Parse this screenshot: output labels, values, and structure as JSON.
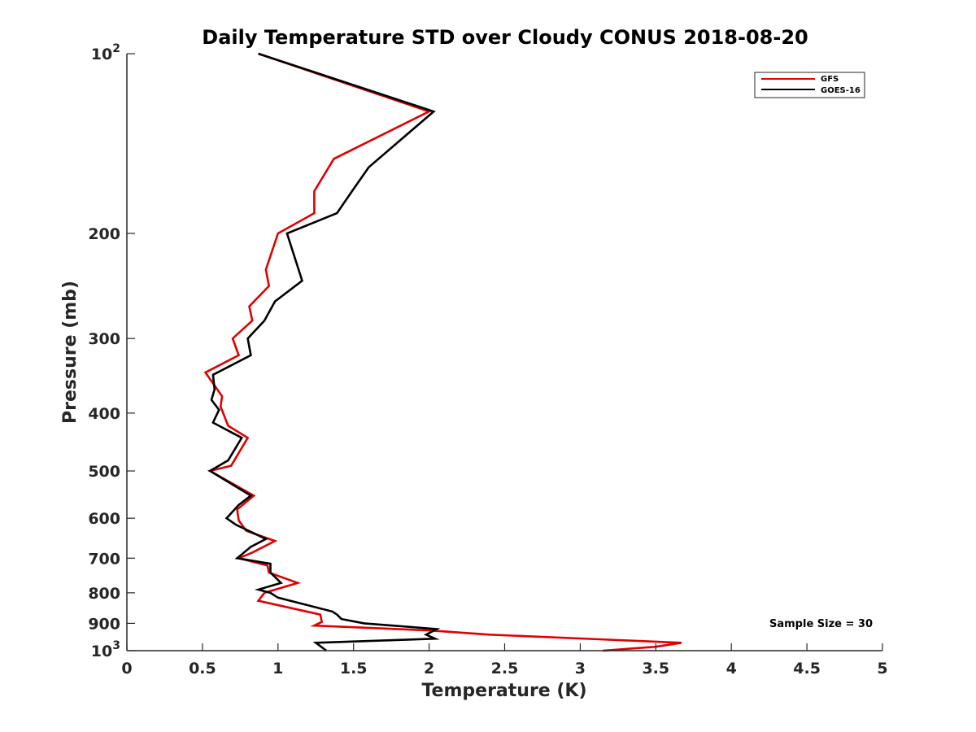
{
  "chart_data": {
    "type": "line",
    "title": "Daily Temperature STD over Cloudy CONUS 2018-08-20",
    "xlabel": "Temperature (K)",
    "ylabel": "Pressure (mb)",
    "xlim": [
      0,
      5
    ],
    "ylim": [
      100,
      1000
    ],
    "y_scale": "log",
    "y_reversed": true,
    "grid": false,
    "legend_position": "top-right",
    "x_ticks": [
      {
        "value": 0,
        "label": "0"
      },
      {
        "value": 0.5,
        "label": "0.5"
      },
      {
        "value": 1,
        "label": "1"
      },
      {
        "value": 1.5,
        "label": "1.5"
      },
      {
        "value": 2,
        "label": "2"
      },
      {
        "value": 2.5,
        "label": "2.5"
      },
      {
        "value": 3,
        "label": "3"
      },
      {
        "value": 3.5,
        "label": "3.5"
      },
      {
        "value": 4,
        "label": "4"
      },
      {
        "value": 4.5,
        "label": "4.5"
      },
      {
        "value": 5,
        "label": "5"
      }
    ],
    "y_ticks": [
      {
        "value": 100,
        "base": "10",
        "exp": "2"
      },
      {
        "value": 200,
        "label": "200"
      },
      {
        "value": 300,
        "label": "300"
      },
      {
        "value": 400,
        "label": "400"
      },
      {
        "value": 500,
        "label": "500"
      },
      {
        "value": 600,
        "label": "600"
      },
      {
        "value": 700,
        "label": "700"
      },
      {
        "value": 800,
        "label": "800"
      },
      {
        "value": 900,
        "label": "900"
      },
      {
        "value": 1000,
        "base": "10",
        "exp": "3"
      }
    ],
    "series": [
      {
        "name": "GFS",
        "color": "#e00000",
        "points": [
          [
            0.87,
            100
          ],
          [
            2.0,
            125
          ],
          [
            1.37,
            150
          ],
          [
            1.24,
            170
          ],
          [
            1.24,
            185
          ],
          [
            1.0,
            200
          ],
          [
            0.92,
            230
          ],
          [
            0.94,
            245
          ],
          [
            0.81,
            265
          ],
          [
            0.83,
            280
          ],
          [
            0.7,
            300
          ],
          [
            0.74,
            320
          ],
          [
            0.52,
            342
          ],
          [
            0.63,
            375
          ],
          [
            0.62,
            390
          ],
          [
            0.67,
            420
          ],
          [
            0.8,
            440
          ],
          [
            0.69,
            490
          ],
          [
            0.55,
            500
          ],
          [
            0.84,
            550
          ],
          [
            0.73,
            580
          ],
          [
            0.74,
            605
          ],
          [
            0.79,
            630
          ],
          [
            0.98,
            655
          ],
          [
            0.83,
            685
          ],
          [
            0.74,
            700
          ],
          [
            0.93,
            720
          ],
          [
            0.94,
            740
          ],
          [
            1.13,
            770
          ],
          [
            0.91,
            800
          ],
          [
            0.87,
            825
          ],
          [
            1.28,
            870
          ],
          [
            1.29,
            895
          ],
          [
            1.24,
            908
          ],
          [
            2.0,
            925
          ],
          [
            2.4,
            940
          ],
          [
            3.67,
            970
          ],
          [
            3.5,
            985
          ],
          [
            3.15,
            1000
          ]
        ]
      },
      {
        "name": "GOES-16",
        "color": "#000000",
        "points": [
          [
            0.87,
            100
          ],
          [
            2.03,
            125
          ],
          [
            1.6,
            155
          ],
          [
            1.49,
            170
          ],
          [
            1.39,
            185
          ],
          [
            1.06,
            200
          ],
          [
            1.16,
            240
          ],
          [
            0.98,
            260
          ],
          [
            0.91,
            280
          ],
          [
            0.8,
            300
          ],
          [
            0.82,
            320
          ],
          [
            0.57,
            345
          ],
          [
            0.58,
            365
          ],
          [
            0.56,
            380
          ],
          [
            0.61,
            395
          ],
          [
            0.57,
            415
          ],
          [
            0.76,
            440
          ],
          [
            0.67,
            480
          ],
          [
            0.55,
            500
          ],
          [
            0.82,
            550
          ],
          [
            0.74,
            570
          ],
          [
            0.66,
            600
          ],
          [
            0.72,
            615
          ],
          [
            0.92,
            650
          ],
          [
            0.82,
            670
          ],
          [
            0.73,
            700
          ],
          [
            0.95,
            715
          ],
          [
            0.95,
            740
          ],
          [
            1.02,
            770
          ],
          [
            0.87,
            790
          ],
          [
            0.95,
            800
          ],
          [
            1.0,
            815
          ],
          [
            1.36,
            860
          ],
          [
            1.39,
            870
          ],
          [
            1.42,
            885
          ],
          [
            1.57,
            900
          ],
          [
            2.05,
            920
          ],
          [
            1.98,
            940
          ],
          [
            2.04,
            955
          ],
          [
            1.25,
            970
          ],
          [
            1.32,
            1000
          ]
        ]
      }
    ],
    "annotation": "Sample Size = 30"
  }
}
